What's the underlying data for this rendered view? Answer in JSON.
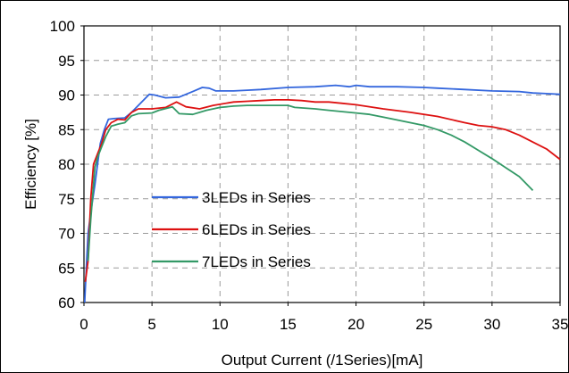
{
  "chart_data": {
    "type": "line",
    "title": "",
    "xlabel": "Output Current (/1Series)[mA]",
    "ylabel": "Efficiency [%]",
    "xlim": [
      0,
      35
    ],
    "ylim": [
      60,
      100
    ],
    "xticks": [
      0,
      5,
      10,
      15,
      20,
      25,
      30,
      35
    ],
    "yticks": [
      60,
      65,
      70,
      75,
      80,
      85,
      90,
      95,
      100
    ],
    "grid": true,
    "legend_position": "lower-left",
    "series": [
      {
        "name": "3LEDs in Series",
        "color": "#3366dd",
        "points": [
          [
            0.05,
            60
          ],
          [
            0.1,
            62
          ],
          [
            0.15,
            64
          ],
          [
            0.2,
            66
          ],
          [
            0.3,
            70
          ],
          [
            0.5,
            73
          ],
          [
            0.8,
            77
          ],
          [
            1.0,
            80
          ],
          [
            1.2,
            83
          ],
          [
            1.5,
            85
          ],
          [
            1.8,
            86.5
          ],
          [
            2.2,
            86.6
          ],
          [
            3.0,
            86.7
          ],
          [
            3.5,
            87.5
          ],
          [
            4.0,
            88.5
          ],
          [
            4.5,
            89.5
          ],
          [
            4.8,
            90.1
          ],
          [
            5.2,
            90.0
          ],
          [
            6.0,
            89.6
          ],
          [
            7.0,
            89.7
          ],
          [
            8.0,
            90.5
          ],
          [
            8.7,
            91.1
          ],
          [
            9.2,
            91.0
          ],
          [
            9.7,
            90.6
          ],
          [
            11,
            90.6
          ],
          [
            12,
            90.7
          ],
          [
            13,
            90.8
          ],
          [
            15,
            91.1
          ],
          [
            17,
            91.2
          ],
          [
            18.5,
            91.4
          ],
          [
            19.5,
            91.2
          ],
          [
            20,
            91.4
          ],
          [
            21,
            91.2
          ],
          [
            23,
            91.2
          ],
          [
            25,
            91.1
          ],
          [
            26,
            91.0
          ],
          [
            28,
            90.8
          ],
          [
            30,
            90.6
          ],
          [
            32,
            90.5
          ],
          [
            33,
            90.3
          ],
          [
            34,
            90.2
          ],
          [
            35,
            90.1
          ]
        ]
      },
      {
        "name": "6LEDs in Series",
        "color": "#dd1111",
        "points": [
          [
            0.1,
            63
          ],
          [
            0.3,
            66
          ],
          [
            0.5,
            75
          ],
          [
            0.7,
            80
          ],
          [
            1.0,
            81.5
          ],
          [
            1.3,
            83
          ],
          [
            1.6,
            85
          ],
          [
            2.0,
            86
          ],
          [
            2.5,
            86.5
          ],
          [
            3.0,
            86.4
          ],
          [
            3.5,
            87.5
          ],
          [
            4.0,
            88.0
          ],
          [
            5.0,
            88.0
          ],
          [
            6.0,
            88.2
          ],
          [
            6.8,
            89.0
          ],
          [
            7.5,
            88.3
          ],
          [
            8.5,
            88.0
          ],
          [
            9.5,
            88.5
          ],
          [
            11,
            89.0
          ],
          [
            12,
            89.1
          ],
          [
            13,
            89.2
          ],
          [
            14,
            89.3
          ],
          [
            15,
            89.3
          ],
          [
            16,
            89.2
          ],
          [
            17,
            89.0
          ],
          [
            18,
            89.0
          ],
          [
            19,
            88.8
          ],
          [
            20,
            88.6
          ],
          [
            22,
            88.0
          ],
          [
            24,
            87.5
          ],
          [
            26,
            86.9
          ],
          [
            28,
            86.0
          ],
          [
            29,
            85.6
          ],
          [
            30,
            85.4
          ],
          [
            31,
            85.0
          ],
          [
            32,
            84.2
          ],
          [
            33,
            83.2
          ],
          [
            34,
            82.2
          ],
          [
            35,
            80.7
          ]
        ]
      },
      {
        "name": "7LEDs in Series",
        "color": "#339966",
        "points": [
          [
            0.3,
            66
          ],
          [
            0.5,
            72
          ],
          [
            0.8,
            79.5
          ],
          [
            1.0,
            81
          ],
          [
            1.3,
            82.5
          ],
          [
            1.6,
            84
          ],
          [
            2.0,
            85.5
          ],
          [
            2.5,
            85.8
          ],
          [
            3.0,
            86.0
          ],
          [
            3.5,
            87.0
          ],
          [
            4.0,
            87.3
          ],
          [
            5.0,
            87.4
          ],
          [
            5.5,
            87.8
          ],
          [
            6.5,
            88.3
          ],
          [
            7.0,
            87.3
          ],
          [
            8.0,
            87.2
          ],
          [
            9.0,
            87.8
          ],
          [
            10,
            88.2
          ],
          [
            11,
            88.4
          ],
          [
            12,
            88.5
          ],
          [
            13,
            88.5
          ],
          [
            14,
            88.5
          ],
          [
            15,
            88.5
          ],
          [
            15.5,
            88.2
          ],
          [
            17,
            88.0
          ],
          [
            18,
            87.8
          ],
          [
            19,
            87.6
          ],
          [
            20,
            87.4
          ],
          [
            21,
            87.2
          ],
          [
            22,
            86.8
          ],
          [
            23,
            86.4
          ],
          [
            24,
            86.0
          ],
          [
            25,
            85.6
          ],
          [
            26,
            85.0
          ],
          [
            27,
            84.2
          ],
          [
            28,
            83.2
          ],
          [
            29,
            82.0
          ],
          [
            30,
            80.8
          ],
          [
            31,
            79.5
          ],
          [
            32,
            78.2
          ],
          [
            33,
            76.2
          ]
        ]
      }
    ]
  }
}
